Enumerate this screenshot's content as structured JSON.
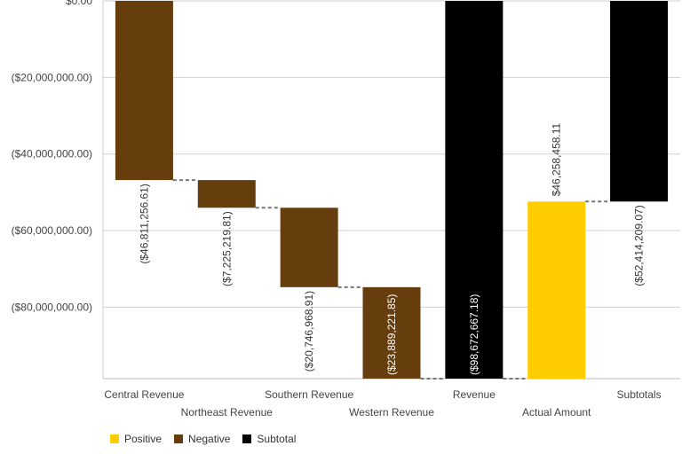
{
  "chart_data": {
    "type": "bar",
    "subtype": "waterfall",
    "categories": [
      "Central Revenue",
      "Northeast Revenue",
      "Southern Revenue",
      "Western Revenue",
      "Revenue",
      "Actual Amount",
      "Subtotals"
    ],
    "values": [
      -46811256.61,
      -7225219.81,
      -20746968.91,
      -23889221.85,
      -98672667.18,
      46258458.11,
      -52414209.07
    ],
    "value_labels": [
      "($46,811,256.61)",
      "($7,225,219.81)",
      "($20,746,968.91)",
      "($23,889,221.85)",
      "($98,672,667.18)",
      "$46,258,458.11",
      "($52,414,209.07)"
    ],
    "bar_kinds": [
      "negative",
      "negative",
      "negative",
      "negative",
      "subtotal",
      "positive",
      "subtotal"
    ],
    "y_ticks": [
      0,
      -20000000,
      -40000000,
      -60000000,
      -80000000
    ],
    "y_tick_labels": [
      "$0.00",
      "($20,000,000.00)",
      "($40,000,000.00)",
      "($60,000,000.00)",
      "($80,000,000.00)"
    ],
    "ylim": [
      -98672667.18,
      0
    ],
    "grid": true,
    "legend_position": "bottom-left",
    "legend": [
      {
        "key": "positive",
        "label": "Positive",
        "color": "#ffcc00"
      },
      {
        "key": "negative",
        "label": "Negative",
        "color": "#663d0d"
      },
      {
        "key": "subtotal",
        "label": "Subtotal",
        "color": "#000000"
      }
    ],
    "connector_color": "#777777"
  }
}
